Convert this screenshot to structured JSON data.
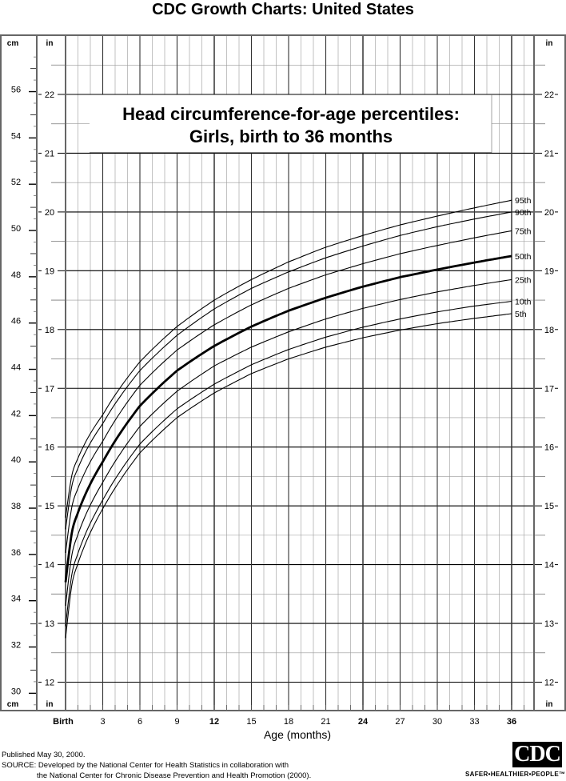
{
  "header": {
    "title": "CDC Growth Charts: United States"
  },
  "chart_box": {
    "title_line1": "Head circumference-for-age percentiles:",
    "title_line2": "Girls, birth to 36 months"
  },
  "axes": {
    "left_unit_cm": "cm",
    "left_unit_in": "in",
    "right_unit_in": "in",
    "xlabel": "Age (months)"
  },
  "footer": {
    "published": "Published May 30, 2000.",
    "source_line1": "SOURCE: Developed by the National Center for Health Statistics in collaboration with",
    "source_line2": "the National Center for Chronic Disease Prevention and Health Promotion (2000).",
    "logo_text": "CDC",
    "tagline": "SAFER•HEALTHIER•PEOPLE™"
  },
  "chart_data": {
    "type": "line",
    "title": "Head circumference-for-age percentiles: Girls, birth to 36 months",
    "supertitle": "CDC Growth Charts: United States",
    "xlabel": "Age (months)",
    "ylabel_left": "cm",
    "ylabel_right": "in",
    "x": [
      0,
      3,
      6,
      9,
      12,
      15,
      18,
      21,
      24,
      27,
      30,
      33,
      36
    ],
    "x_tick_labels": [
      "Birth",
      "3",
      "6",
      "9",
      "12",
      "15",
      "18",
      "21",
      "24",
      "27",
      "30",
      "33",
      "36"
    ],
    "xlim": [
      0,
      36
    ],
    "ylim_in": [
      11.8,
      23
    ],
    "ylim_cm": [
      30,
      57
    ],
    "y_ticks_in": [
      12,
      13,
      14,
      15,
      16,
      17,
      18,
      19,
      20,
      21,
      22
    ],
    "y_ticks_cm": [
      30,
      32,
      34,
      36,
      38,
      40,
      42,
      44,
      46,
      48,
      50,
      52,
      54,
      56
    ],
    "grid": true,
    "units": "inches",
    "series": [
      {
        "name": "95th",
        "values": [
          14.8,
          16.55,
          17.45,
          18.05,
          18.5,
          18.85,
          19.15,
          19.4,
          19.6,
          19.78,
          19.93,
          20.07,
          20.2
        ]
      },
      {
        "name": "90th",
        "values": [
          14.6,
          16.4,
          17.3,
          17.9,
          18.35,
          18.7,
          18.98,
          19.22,
          19.42,
          19.6,
          19.75,
          19.88,
          20.0
        ]
      },
      {
        "name": "75th",
        "values": [
          14.2,
          16.1,
          17.05,
          17.65,
          18.08,
          18.42,
          18.7,
          18.93,
          19.12,
          19.29,
          19.43,
          19.56,
          19.68
        ]
      },
      {
        "name": "50th",
        "values": [
          13.7,
          15.75,
          16.7,
          17.3,
          17.72,
          18.05,
          18.32,
          18.54,
          18.73,
          18.89,
          19.02,
          19.14,
          19.25
        ]
      },
      {
        "name": "25th",
        "values": [
          13.3,
          15.4,
          16.35,
          16.95,
          17.38,
          17.7,
          17.96,
          18.18,
          18.36,
          18.51,
          18.64,
          18.75,
          18.85
        ]
      },
      {
        "name": "10th",
        "values": [
          12.95,
          15.1,
          16.05,
          16.65,
          17.07,
          17.4,
          17.66,
          17.87,
          18.04,
          18.18,
          18.3,
          18.4,
          18.48
        ]
      },
      {
        "name": "5th",
        "values": [
          12.75,
          14.95,
          15.9,
          16.5,
          16.92,
          17.25,
          17.5,
          17.7,
          17.86,
          17.99,
          18.1,
          18.19,
          18.27
        ]
      }
    ]
  }
}
